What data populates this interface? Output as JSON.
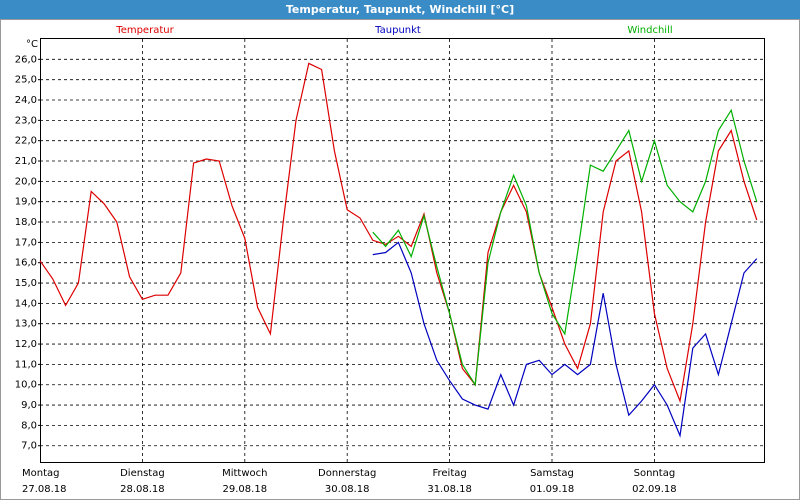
{
  "chart_data": {
    "type": "line",
    "title": "Temperatur, Taupunkt, Windchill [°C]",
    "y_label": "°C",
    "categories": [
      "27.08.18",
      null,
      null,
      null,
      null,
      null,
      null,
      null,
      "28.08.18",
      null,
      null,
      null,
      null,
      null,
      null,
      null,
      "29.08.18",
      null,
      null,
      null,
      null,
      null,
      null,
      null,
      "30.08.18",
      null,
      null,
      null,
      null,
      null,
      null,
      null,
      "31.08.18",
      null,
      null,
      null,
      null,
      null,
      null,
      null,
      "01.09.18",
      null,
      null,
      null,
      null,
      null,
      null,
      null,
      "02.09.18",
      null,
      null,
      null,
      null,
      null,
      null,
      null,
      null
    ],
    "weekdays": [
      "Montag",
      "Dienstag",
      "Mittwoch",
      "Donnerstag",
      "Freitag",
      "Samstag",
      "Sonntag"
    ],
    "series": [
      {
        "name": "Temperatur",
        "color": "#dd0000",
        "values": [
          16.1,
          15.2,
          13.9,
          15.0,
          19.5,
          18.9,
          18.0,
          15.3,
          14.2,
          14.4,
          14.4,
          15.5,
          20.9,
          21.1,
          21.0,
          18.8,
          17.2,
          13.8,
          12.5,
          18.0,
          23.0,
          25.8,
          25.5,
          21.5,
          18.6,
          18.2,
          17.1,
          16.9,
          17.3,
          16.8,
          18.4,
          15.5,
          13.5,
          10.8,
          10.0,
          16.5,
          18.5,
          19.8,
          18.5,
          15.5,
          13.8,
          12.0,
          10.8,
          13.0,
          18.5,
          21.0,
          21.5,
          18.5,
          13.5,
          10.8,
          9.2,
          13.0,
          18.0,
          21.5,
          22.5,
          20.0,
          18.1
        ]
      },
      {
        "name": "Taupunkt",
        "color": "#0000c0",
        "values": [
          null,
          null,
          null,
          null,
          null,
          null,
          null,
          null,
          null,
          null,
          null,
          null,
          null,
          null,
          null,
          null,
          null,
          null,
          null,
          null,
          null,
          null,
          null,
          null,
          null,
          null,
          16.4,
          16.5,
          17.0,
          15.5,
          13.0,
          11.2,
          10.2,
          9.3,
          9.0,
          8.8,
          10.5,
          9.0,
          11.0,
          11.2,
          10.5,
          11.0,
          10.5,
          11.0,
          14.5,
          11.0,
          8.5,
          9.2,
          10.0,
          9.0,
          7.5,
          11.8,
          12.5,
          10.5,
          13.0,
          15.5,
          16.2
        ]
      },
      {
        "name": "Windchill",
        "color": "#00b000",
        "values": [
          null,
          null,
          null,
          null,
          null,
          null,
          null,
          null,
          null,
          null,
          null,
          null,
          null,
          null,
          null,
          null,
          null,
          null,
          null,
          null,
          null,
          null,
          null,
          null,
          null,
          null,
          17.5,
          16.8,
          17.6,
          16.3,
          18.3,
          15.8,
          13.5,
          11.0,
          10.0,
          16.0,
          18.5,
          20.3,
          18.8,
          15.5,
          13.5,
          12.5,
          16.5,
          20.8,
          20.5,
          21.5,
          22.5,
          20.0,
          22.0,
          19.8,
          19.0,
          18.5,
          20.0,
          22.5,
          23.5,
          21.0,
          19.0
        ]
      }
    ],
    "ylim": [
      6.2,
      27.0
    ],
    "yticks": [
      {
        "value": 7,
        "label": "7,0"
      },
      {
        "value": 8,
        "label": "8,0"
      },
      {
        "value": 9,
        "label": "9,0"
      },
      {
        "value": 10,
        "label": "10,0"
      },
      {
        "value": 11,
        "label": "11,0"
      },
      {
        "value": 12,
        "label": "12,0"
      },
      {
        "value": 13,
        "label": "13,0"
      },
      {
        "value": 14,
        "label": "14,0"
      },
      {
        "value": 15,
        "label": "15,0"
      },
      {
        "value": 16,
        "label": "16,0"
      },
      {
        "value": 17,
        "label": "17,0"
      },
      {
        "value": 18,
        "label": "18,0"
      },
      {
        "value": 19,
        "label": "19,0"
      },
      {
        "value": 20,
        "label": "20,0"
      },
      {
        "value": 21,
        "label": "21,0"
      },
      {
        "value": 22,
        "label": "22,0"
      },
      {
        "value": 23,
        "label": "23,0"
      },
      {
        "value": 24,
        "label": "24,0"
      },
      {
        "value": 25,
        "label": "25,0"
      },
      {
        "value": 26,
        "label": "26,0"
      }
    ],
    "grid": true
  }
}
